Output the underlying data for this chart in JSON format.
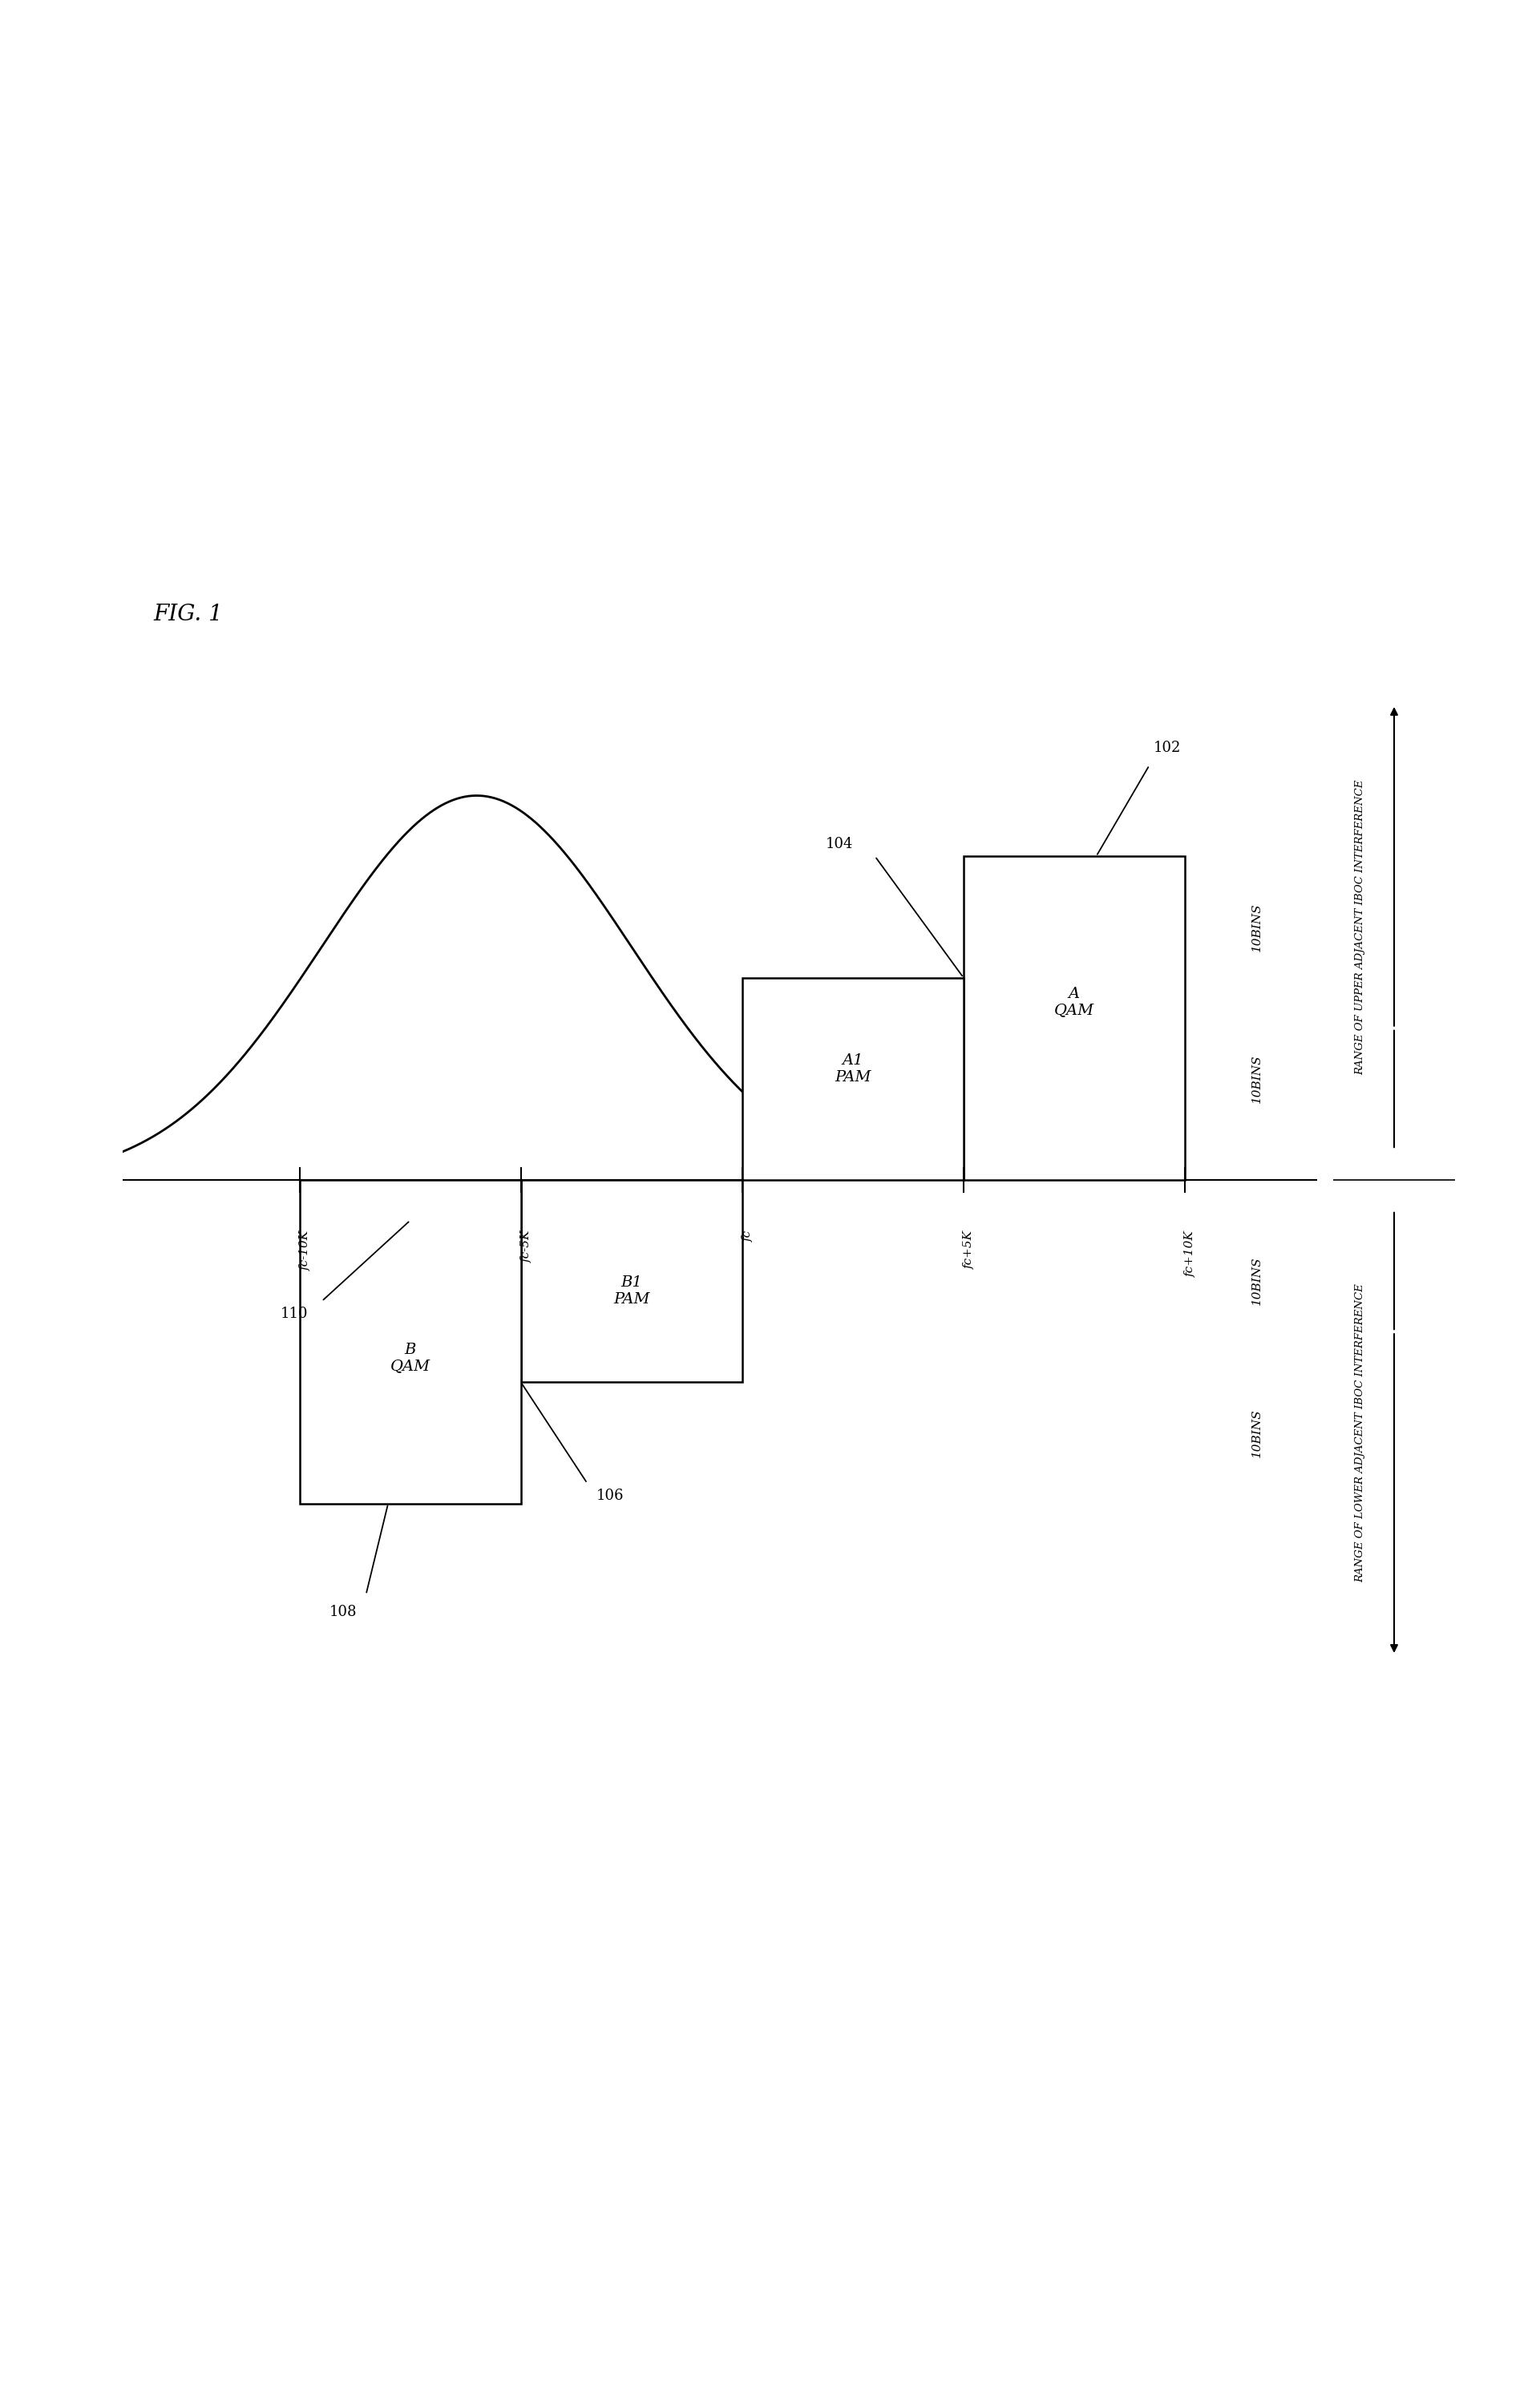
{
  "title": "FIG. 1",
  "background_color": "#ffffff",
  "fig_width": 19.11,
  "fig_height": 30.04,
  "freq_labels": [
    "fc-10K",
    "fc-5K",
    "fc",
    "fc+5K",
    "fc+10K"
  ],
  "freq_positions": [
    -10,
    -5,
    0,
    5,
    10
  ],
  "box_A_label": "A\nQAM",
  "box_B_label": "B\nQAM",
  "box_A1_label": "A1\nPAM",
  "box_B1_label": "B1\nPAM",
  "ref_102": "102",
  "ref_104": "104",
  "ref_106": "106",
  "ref_108": "108",
  "ref_110": "110",
  "upper_range_text": "RANGE OF UPPER ADJACENT IBOC INTERFERENCE",
  "lower_range_text": "RANGE OF LOWER ADJACENT IBOC INTERFERENCE",
  "bins_label": "10BINS"
}
